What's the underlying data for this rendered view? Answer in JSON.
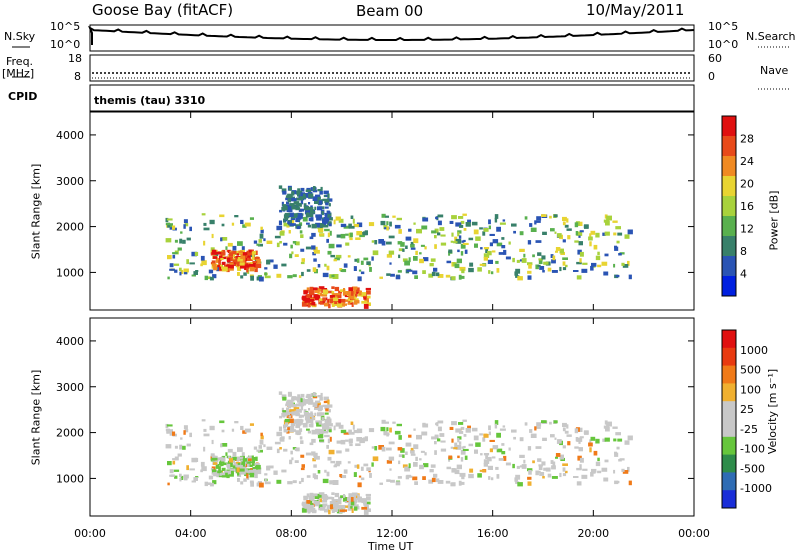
{
  "header": {
    "station": "Goose Bay (fitACF)",
    "beam": "Beam 00",
    "date": "10/May/2011"
  },
  "top_panels": {
    "nsky_label": "N.Sky",
    "nsky_ticks": [
      "10^5",
      "10^0"
    ],
    "nsearch_label": "N.Search",
    "nsearch_ticks": [
      "10^5",
      "10^0"
    ],
    "freq_label": "Freq.",
    "freq_unit": "[MHz]",
    "freq_ticks": [
      "18",
      "8"
    ],
    "nave_label": "Nave",
    "nave_ticks": [
      "60",
      "0"
    ],
    "cpid_label": "CPID",
    "cpid_value": "themis (tau) 3310"
  },
  "chart_data": [
    {
      "type": "heatmap",
      "name": "power",
      "ylabel": "Slant Range [km]",
      "ylim": [
        180,
        4500
      ],
      "yticks": [
        1000,
        2000,
        3000,
        4000
      ],
      "xlim": [
        0,
        24
      ],
      "colorbar_label": "Power [dB]",
      "colorbar_ticks": [
        "28",
        "24",
        "20",
        "16",
        "12",
        "8",
        "4"
      ],
      "colors": [
        "#0020e0",
        "#2a54b4",
        "#38806a",
        "#59b04e",
        "#a8d23c",
        "#e8d432",
        "#f08a22",
        "#e84a1a",
        "#e01010"
      ],
      "echo_regions": [
        {
          "t0": 3.0,
          "t1": 21.5,
          "r_lo": 900,
          "r_hi": 2300,
          "level": "medium"
        },
        {
          "t0": 4.8,
          "t1": 6.6,
          "r_lo": 1100,
          "r_hi": 1500,
          "level": "high"
        },
        {
          "t0": 8.4,
          "t1": 11.0,
          "r_lo": 300,
          "r_hi": 700,
          "level": "high"
        },
        {
          "t0": 7.5,
          "t1": 9.5,
          "r_lo": 2000,
          "r_hi": 2900,
          "level": "low"
        }
      ]
    },
    {
      "type": "heatmap",
      "name": "velocity",
      "ylabel": "Slant Range [km]",
      "ylim": [
        180,
        4500
      ],
      "yticks": [
        1000,
        2000,
        3000,
        4000
      ],
      "xlim": [
        0,
        24
      ],
      "colorbar_label": "Velocity [m s⁻¹]",
      "colorbar_ticks": [
        "1000",
        "500",
        "100",
        "25",
        "-25",
        "-100",
        "-500",
        "-1000"
      ],
      "colors": [
        "#1a2ed8",
        "#2f6cb4",
        "#2e8c4a",
        "#66c63c",
        "#c8c8c8",
        "#c8c8c8",
        "#f0b030",
        "#f07a18",
        "#e83a10",
        "#e01010"
      ],
      "xlabel": "Time UT",
      "xticks": [
        "00:00",
        "04:00",
        "08:00",
        "12:00",
        "16:00",
        "20:00",
        "00:00"
      ]
    }
  ]
}
